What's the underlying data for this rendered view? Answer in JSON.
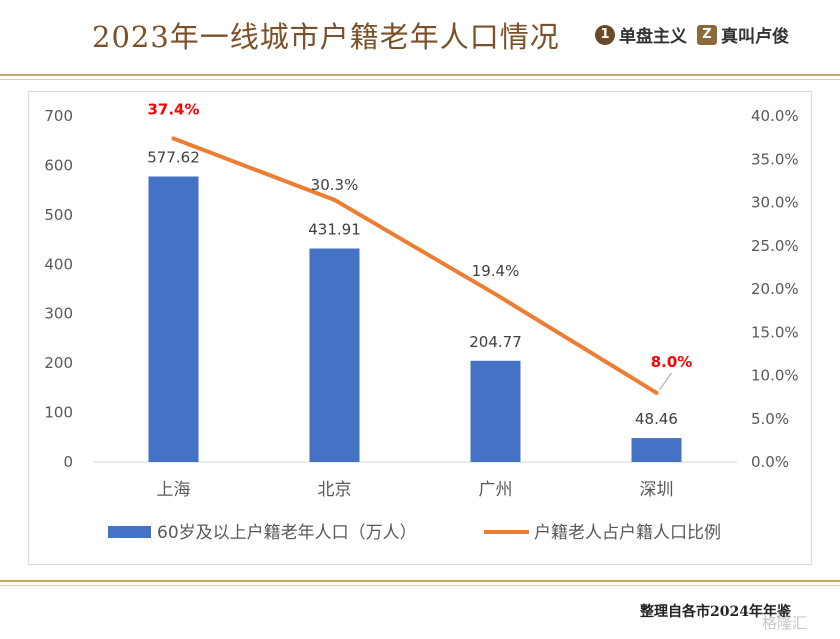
{
  "header": {
    "title": "2023年一线城市户籍老年人口情况",
    "brand1_icon": "1",
    "brand1_name": "单盘主义",
    "brand2_icon": "Z",
    "brand2_name": "真叫卢俊"
  },
  "footer": {
    "note": "整理自各市2024年年鉴",
    "watermark": "格隆汇"
  },
  "colors": {
    "bar": "#4472c4",
    "line": "#ed7d31",
    "highlight_label": "#ff0000",
    "accent": "#caa56a"
  },
  "chart_data": {
    "type": "bar",
    "categories": [
      "上海",
      "北京",
      "广州",
      "深圳"
    ],
    "left_axis": {
      "min": 0,
      "max": 700,
      "step": 100,
      "ticks": [
        "0",
        "100",
        "200",
        "300",
        "400",
        "500",
        "600",
        "700"
      ]
    },
    "right_axis": {
      "min": 0,
      "max": 40,
      "step": 5,
      "ticks": [
        "0.0%",
        "5.0%",
        "10.0%",
        "15.0%",
        "20.0%",
        "25.0%",
        "30.0%",
        "35.0%",
        "40.0%"
      ]
    },
    "series": [
      {
        "name": "60岁及以上户籍老年人口（万人）",
        "type": "bar",
        "axis": "left",
        "values": [
          577.62,
          431.91,
          204.77,
          48.46
        ],
        "labels": [
          "577.62",
          "431.91",
          "204.77",
          "48.46"
        ]
      },
      {
        "name": "户籍老人占户籍人口比例",
        "type": "line",
        "axis": "right",
        "values": [
          37.4,
          30.3,
          19.4,
          8.0
        ],
        "labels": [
          "37.4%",
          "30.3%",
          "19.4%",
          "8.0%"
        ],
        "highlighted": [
          true,
          false,
          false,
          true
        ]
      }
    ],
    "legend_position": "bottom",
    "grid": false
  }
}
